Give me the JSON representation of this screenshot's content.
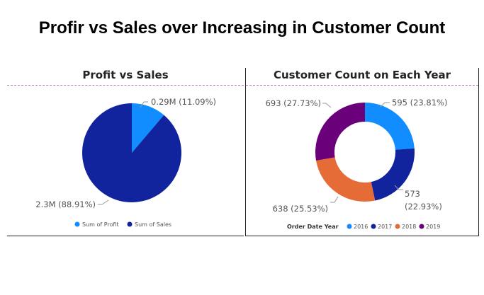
{
  "page": {
    "title": "Profir vs Sales over Increasing in Customer Count"
  },
  "chart_data": [
    {
      "type": "pie",
      "title": "Profit vs Sales",
      "series": [
        {
          "name": "Sum of Profit",
          "value": 0.29,
          "label": "0.29M (11.09%)",
          "color": "#118DFF"
        },
        {
          "name": "Sum of Sales",
          "value": 2.3,
          "label": "2.3M (88.91%)",
          "color": "#12239E"
        }
      ],
      "legend": {
        "position": "bottom",
        "entries": [
          "Sum of Profit",
          "Sum of Sales"
        ]
      }
    },
    {
      "type": "donut",
      "title": "Customer Count on Each Year",
      "series": [
        {
          "name": "2016",
          "value": 595,
          "label": "595 (23.81%)",
          "color": "#118DFF"
        },
        {
          "name": "2017",
          "value": 573,
          "label_lines": [
            "573",
            "(22.93%)"
          ],
          "color": "#12239E"
        },
        {
          "name": "2018",
          "value": 638,
          "label": "638 (25.53%)",
          "color": "#E66C37"
        },
        {
          "name": "2019",
          "value": 693,
          "label": "693 (27.73%)",
          "color": "#6B007B"
        }
      ],
      "legend": {
        "position": "bottom",
        "title": "Order Date Year",
        "entries": [
          "2016",
          "2017",
          "2018",
          "2019"
        ]
      }
    }
  ]
}
